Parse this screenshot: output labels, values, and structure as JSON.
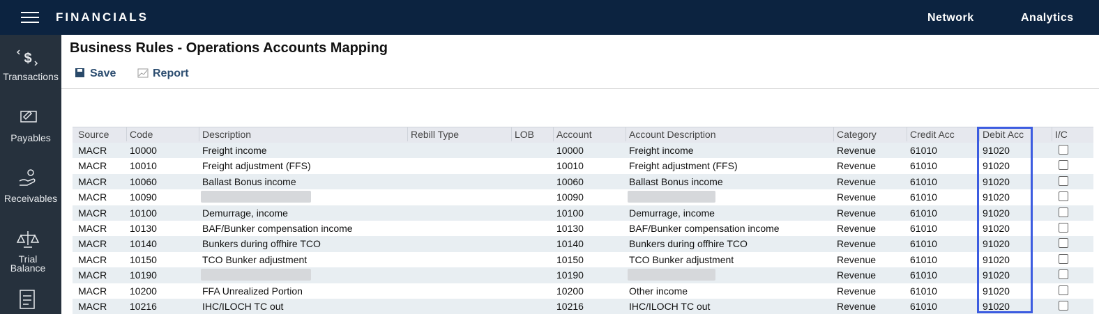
{
  "header": {
    "app_title": "FINANCIALS",
    "nav": [
      "Network",
      "Analytics"
    ]
  },
  "sidebar": {
    "items": [
      "Transactions",
      "Payables",
      "Receivables",
      "Trial Balance"
    ]
  },
  "page": {
    "title": "Business Rules - Operations Accounts Mapping",
    "actions": [
      "Save",
      "Report"
    ]
  },
  "table": {
    "columns": [
      "Source",
      "Code",
      "Description",
      "Rebill Type",
      "LOB",
      "Account",
      "Account Description",
      "Category",
      "Credit Acc",
      "Debit Acc",
      "I/C"
    ],
    "rows": [
      {
        "source": "MACR",
        "code": "10000",
        "description": "Freight income",
        "account": "10000",
        "account_description": "Freight income",
        "category": "Revenue",
        "credit_acc": "61010",
        "debit_acc": "91020"
      },
      {
        "source": "MACR",
        "code": "10010",
        "description": "Freight adjustment (FFS)",
        "account": "10010",
        "account_description": "Freight adjustment (FFS)",
        "category": "Revenue",
        "credit_acc": "61010",
        "debit_acc": "91020"
      },
      {
        "source": "MACR",
        "code": "10060",
        "description": "Ballast Bonus income",
        "account": "10060",
        "account_description": "Ballast Bonus income",
        "category": "Revenue",
        "credit_acc": "61010",
        "debit_acc": "91020"
      },
      {
        "source": "MACR",
        "code": "10090",
        "description": null,
        "account": "10090",
        "account_description": null,
        "category": "Revenue",
        "credit_acc": "61010",
        "debit_acc": "91020"
      },
      {
        "source": "MACR",
        "code": "10100",
        "description": "Demurrage, income",
        "account": "10100",
        "account_description": "Demurrage, income",
        "category": "Revenue",
        "credit_acc": "61010",
        "debit_acc": "91020"
      },
      {
        "source": "MACR",
        "code": "10130",
        "description": "BAF/Bunker compensation income",
        "account": "10130",
        "account_description": "BAF/Bunker compensation income",
        "category": "Revenue",
        "credit_acc": "61010",
        "debit_acc": "91020"
      },
      {
        "source": "MACR",
        "code": "10140",
        "description": "Bunkers during offhire TCO",
        "account": "10140",
        "account_description": "Bunkers during offhire TCO",
        "category": "Revenue",
        "credit_acc": "61010",
        "debit_acc": "91020"
      },
      {
        "source": "MACR",
        "code": "10150",
        "description": "TCO Bunker adjustment",
        "account": "10150",
        "account_description": "TCO Bunker adjustment",
        "category": "Revenue",
        "credit_acc": "61010",
        "debit_acc": "91020"
      },
      {
        "source": "MACR",
        "code": "10190",
        "description": null,
        "account": "10190",
        "account_description": null,
        "category": "Revenue",
        "credit_acc": "61010",
        "debit_acc": "91020"
      },
      {
        "source": "MACR",
        "code": "10200",
        "description": "FFA Unrealized Portion",
        "account": "10200",
        "account_description": "Other income",
        "category": "Revenue",
        "credit_acc": "61010",
        "debit_acc": "91020"
      },
      {
        "source": "MACR",
        "code": "10216",
        "description": "IHC/ILOCH TC out",
        "account": "10216",
        "account_description": "IHC/ILOCH TC out",
        "category": "Revenue",
        "credit_acc": "61010",
        "debit_acc": "91020"
      }
    ]
  }
}
